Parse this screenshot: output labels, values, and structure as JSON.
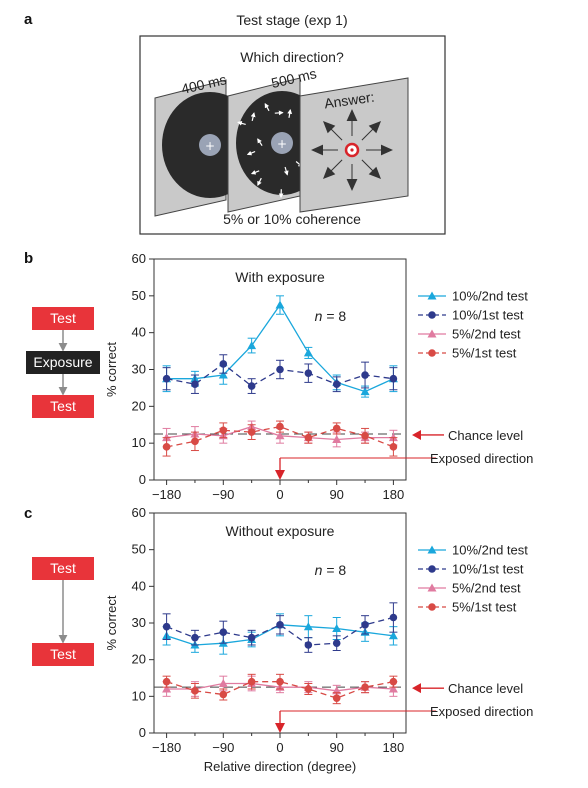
{
  "panel_labels": {
    "a": "a",
    "b": "b",
    "c": "c"
  },
  "panel_a": {
    "title": "Test stage (exp 1)",
    "question": "Which direction?",
    "duration_1": "400 ms",
    "duration_2": "500 ms",
    "answer_label": "Answer:",
    "coherence": "5% or 10% coherence"
  },
  "flow_b": {
    "top": "Test",
    "middle": "Exposure",
    "bottom": "Test"
  },
  "flow_c": {
    "top": "Test",
    "bottom": "Test"
  },
  "colors": {
    "cyan": "#1aa7dc",
    "navy": "#2e3a8c",
    "pink": "#e07ba0",
    "red": "#d84a45",
    "flow_red": "#e8343a",
    "flow_dark": "#222222",
    "arrow_red": "#d8242a"
  },
  "annotations": {
    "b": {
      "chance": "Chance level",
      "exposed": "Exposed direction"
    },
    "c": {
      "chance": "Chance level",
      "exposed": "Exposed direction"
    }
  },
  "chart_data": [
    {
      "panel": "b",
      "type": "line",
      "title": "With exposure",
      "n_label": "n",
      "n_value": "= 8",
      "xlabel": "",
      "ylabel": "% correct",
      "xlim": [
        -200,
        200
      ],
      "ylim": [
        0,
        60
      ],
      "xticks": [
        -180,
        -90,
        0,
        90,
        180
      ],
      "xtick_labels": [
        "−180",
        "−90",
        "0",
        "90",
        "180"
      ],
      "yticks": [
        0,
        10,
        20,
        30,
        40,
        50,
        60
      ],
      "chance_level": 12.5,
      "exposed_direction": 0,
      "x": [
        -180,
        -135,
        -90,
        -45,
        0,
        45,
        90,
        135,
        180
      ],
      "series": [
        {
          "name": "10%/2nd test",
          "color": "#1aa7dc",
          "marker": "triangle",
          "dash": false,
          "values": [
            27.5,
            27.5,
            28.5,
            36.5,
            47.5,
            34.5,
            26.5,
            24,
            27.5
          ],
          "errors": [
            3.5,
            2,
            2.5,
            2,
            2.5,
            1.5,
            2,
            1.5,
            3.5
          ]
        },
        {
          "name": "10%/1st test",
          "color": "#2e3a8c",
          "marker": "circle",
          "dash": true,
          "values": [
            27.5,
            26,
            31.5,
            25.5,
            30,
            29,
            26,
            28.5,
            27.5
          ],
          "errors": [
            3,
            2.5,
            2.5,
            2,
            2.5,
            2.5,
            2,
            3.5,
            3
          ]
        },
        {
          "name": "5%/2nd test",
          "color": "#e07ba0",
          "marker": "triangle",
          "dash": false,
          "values": [
            11.5,
            12.5,
            12,
            14.5,
            12,
            11.5,
            11,
            11.5,
            11.5
          ],
          "errors": [
            2.5,
            2,
            2,
            1.5,
            2,
            1.5,
            2,
            1.5,
            2
          ]
        },
        {
          "name": "5%/1st test",
          "color": "#d84a45",
          "marker": "circle",
          "dash": true,
          "values": [
            9,
            10.5,
            13.5,
            13,
            14.5,
            11.5,
            14,
            12,
            9
          ],
          "errors": [
            2.5,
            2.5,
            2,
            2,
            1.5,
            1.5,
            1.5,
            2,
            2.5
          ]
        }
      ]
    },
    {
      "panel": "c",
      "type": "line",
      "title": "Without exposure",
      "n_label": "n",
      "n_value": "= 8",
      "xlabel": "Relative direction (degree)",
      "ylabel": "% correct",
      "xlim": [
        -200,
        200
      ],
      "ylim": [
        0,
        60
      ],
      "xticks": [
        -180,
        -90,
        0,
        90,
        180
      ],
      "xtick_labels": [
        "−180",
        "−90",
        "0",
        "90",
        "180"
      ],
      "yticks": [
        0,
        10,
        20,
        30,
        40,
        50,
        60
      ],
      "chance_level": 12.5,
      "exposed_direction": 0,
      "x": [
        -180,
        -135,
        -90,
        -45,
        0,
        45,
        90,
        135,
        180
      ],
      "series": [
        {
          "name": "10%/2nd test",
          "color": "#1aa7dc",
          "marker": "triangle",
          "dash": false,
          "values": [
            26.5,
            24,
            24.5,
            25.5,
            29.5,
            29,
            28.5,
            27.5,
            26.5
          ],
          "errors": [
            2.5,
            2,
            3,
            2,
            3,
            3,
            3,
            2.5,
            2.5
          ]
        },
        {
          "name": "10%/1st test",
          "color": "#2e3a8c",
          "marker": "circle",
          "dash": true,
          "values": [
            29,
            26,
            27.5,
            26,
            29.5,
            24,
            24.5,
            29.5,
            31.5
          ],
          "errors": [
            3.5,
            2,
            3,
            2,
            2.5,
            2,
            2,
            2.5,
            4
          ]
        },
        {
          "name": "5%/2nd test",
          "color": "#e07ba0",
          "marker": "triangle",
          "dash": false,
          "values": [
            12,
            12,
            13.5,
            13.5,
            12.5,
            12.5,
            11.5,
            12.5,
            12
          ],
          "errors": [
            2,
            2,
            2,
            2,
            1.5,
            1.5,
            1.5,
            1.5,
            2
          ]
        },
        {
          "name": "5%/1st test",
          "color": "#d84a45",
          "marker": "circle",
          "dash": true,
          "values": [
            14,
            11.5,
            10.5,
            14,
            14,
            12,
            9.5,
            12.5,
            14
          ],
          "errors": [
            1.5,
            2,
            1.5,
            2,
            2,
            1.5,
            1.5,
            1.5,
            1.5
          ]
        }
      ]
    }
  ]
}
